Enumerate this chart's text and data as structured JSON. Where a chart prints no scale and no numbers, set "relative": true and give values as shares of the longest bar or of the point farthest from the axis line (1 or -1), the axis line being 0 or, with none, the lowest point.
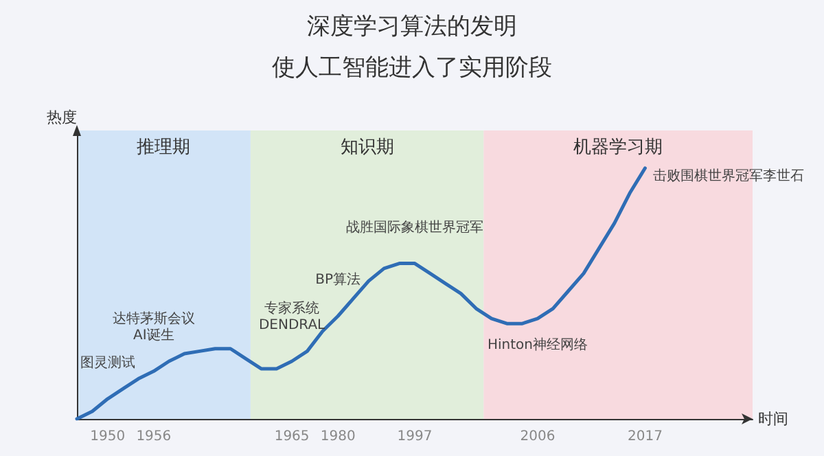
{
  "chart_data": {
    "type": "line",
    "title": "深度学习算法的发明",
    "subtitle": "使人工智能进入了实用阶段",
    "xlabel": "时间",
    "ylabel": "热度",
    "relative": true,
    "marker": "none",
    "grid": false,
    "categories": [
      null,
      null,
      "1950",
      null,
      null,
      "1956",
      null,
      null,
      null,
      null,
      null,
      null,
      null,
      null,
      "1965",
      null,
      null,
      "1980",
      null,
      null,
      null,
      null,
      "1997",
      null,
      null,
      null,
      null,
      null,
      null,
      null,
      "2006",
      null,
      null,
      null,
      null,
      null,
      null,
      "2017",
      null,
      null,
      null,
      null,
      null,
      null,
      null
    ],
    "series": [
      {
        "color": "#2f6db5",
        "values": [
          0,
          0.03,
          0.08,
          0.12,
          0.16,
          0.19,
          0.23,
          0.26,
          0.27,
          0.28,
          0.28,
          0.24,
          0.2,
          0.2,
          0.23,
          0.27,
          0.35,
          0.41,
          0.48,
          0.55,
          0.6,
          0.62,
          0.62,
          0.58,
          0.54,
          0.5,
          0.44,
          0.4,
          0.38,
          0.38,
          0.4,
          0.44,
          0.51,
          0.58,
          0.68,
          0.78,
          0.9,
          1,
          null,
          null,
          null,
          null,
          null,
          null,
          null
        ]
      }
    ],
    "annotations": [
      "推理期",
      "知识期",
      "机器学习期",
      {
        "text": "图灵测试",
        "x": "1950",
        "y": 0.08
      },
      {
        "text": "达特茅斯会议\nAI诞生",
        "x": "1956",
        "y": 0.19
      },
      {
        "text": "专家系统\nDENDRAL",
        "x": "1965",
        "y": 0.23
      },
      {
        "text": "BP算法",
        "x": "1980",
        "y": 0.41
      },
      {
        "text": "战胜国际象棋世界冠军",
        "x": "1997",
        "y": 0.62
      },
      {
        "text": "Hinton神经网络",
        "x": "2006",
        "y": 0.38
      },
      {
        "text": "击败围棋世界冠军李世石",
        "x": "2017",
        "y": 1
      }
    ]
  }
}
